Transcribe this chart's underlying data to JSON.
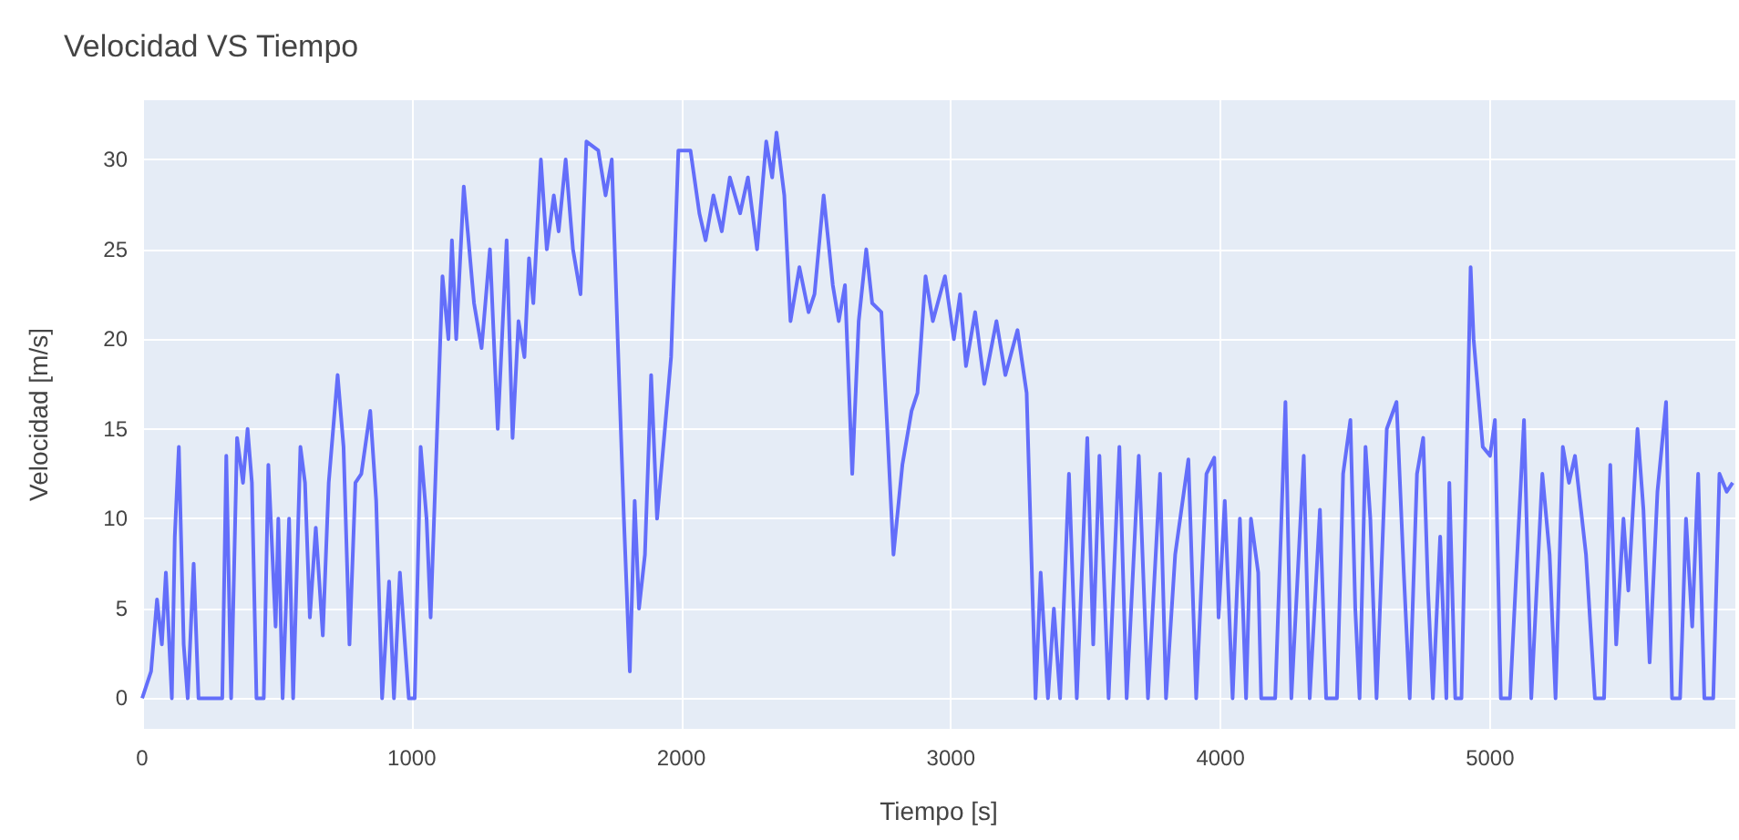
{
  "chart_data": {
    "type": "line",
    "title": "Velocidad VS Tiempo",
    "xlabel": "Tiempo [s]",
    "ylabel": "Velocidad [m/s]",
    "xlim": [
      0,
      5910
    ],
    "xticks": [
      0,
      1000,
      2000,
      3000,
      4000,
      5000
    ],
    "ylim": [
      -1.7,
      33.3
    ],
    "yticks": [
      0,
      5,
      10,
      15,
      20,
      25,
      30
    ],
    "grid": true,
    "x": [
      0,
      33,
      55,
      73,
      88,
      110,
      121,
      136,
      154,
      169,
      191,
      209,
      297,
      312,
      330,
      352,
      374,
      391,
      407,
      424,
      451,
      468,
      495,
      505,
      521,
      545,
      560,
      587,
      604,
      622,
      644,
      670,
      692,
      725,
      747,
      769,
      791,
      813,
      846,
      868,
      890,
      916,
      934,
      956,
      989,
      1011,
      1033,
      1055,
      1070,
      1114,
      1136,
      1149,
      1165,
      1193,
      1231,
      1259,
      1290,
      1319,
      1352,
      1374,
      1396,
      1418,
      1435,
      1451,
      1479,
      1501,
      1527,
      1545,
      1571,
      1598,
      1626,
      1648,
      1692,
      1719,
      1742,
      1764,
      1787,
      1809,
      1827,
      1843,
      1865,
      1888,
      1910,
      1939,
      1962,
      1989,
      2034,
      2067,
      2090,
      2119,
      2150,
      2180,
      2218,
      2247,
      2281,
      2315,
      2337,
      2353,
      2382,
      2405,
      2438,
      2472,
      2494,
      2528,
      2562,
      2584,
      2607,
      2634,
      2658,
      2686,
      2708,
      2742,
      2764,
      2787,
      2820,
      2854,
      2876,
      2906,
      2933,
      2978,
      3011,
      3034,
      3056,
      3090,
      3124,
      3169,
      3202,
      3247,
      3281,
      3314,
      3333,
      3360,
      3382,
      3405,
      3438,
      3467,
      3506,
      3528,
      3551,
      3567,
      3585,
      3625,
      3652,
      3697,
      3731,
      3776,
      3798,
      3832,
      3881,
      3910,
      3948,
      3977,
      3993,
      4016,
      4045,
      4072,
      4095,
      4113,
      4140,
      4151,
      4203,
      4241,
      4263,
      4309,
      4331,
      4369,
      4392,
      4432,
      4455,
      4482,
      4500,
      4516,
      4538,
      4556,
      4579,
      4617,
      4653,
      4680,
      4702,
      4729,
      4752,
      4770,
      4788,
      4815,
      4838,
      4849,
      4871,
      4894,
      4928,
      4939,
      4973,
      5000,
      5018,
      5040,
      5074,
      5126,
      5153,
      5194,
      5221,
      5243,
      5270,
      5293,
      5315,
      5356,
      5389,
      5423,
      5446,
      5468,
      5495,
      5513,
      5547,
      5569,
      5592,
      5621,
      5653,
      5675,
      5705,
      5727,
      5750,
      5772,
      5795,
      5828,
      5851,
      5878,
      5900
    ],
    "series": [
      {
        "color": "#636efa",
        "values": [
          0,
          1.5,
          5.5,
          3,
          7,
          0,
          9,
          14,
          3,
          0,
          7.5,
          0,
          0,
          13.5,
          0,
          14.5,
          12,
          15,
          12,
          0,
          0,
          13,
          4,
          10,
          0,
          10,
          0,
          14,
          12,
          4.5,
          9.5,
          3.5,
          12,
          18,
          14,
          3,
          12,
          12.5,
          16,
          11,
          0,
          6.5,
          0,
          7,
          0,
          0,
          14,
          10,
          4.5,
          23.5,
          20,
          25.5,
          20,
          28.5,
          22,
          19.5,
          25,
          15,
          25.5,
          14.5,
          21,
          19,
          24.5,
          22,
          30,
          25,
          28,
          26,
          30,
          25,
          22.5,
          31,
          30.5,
          28,
          30,
          20,
          10,
          1.5,
          11,
          5,
          8,
          18,
          10,
          15,
          19,
          30.5,
          30.5,
          27,
          25.5,
          28,
          26,
          29,
          27,
          29,
          25,
          31,
          29,
          31.5,
          28,
          21,
          24,
          21.5,
          22.5,
          28,
          23,
          21,
          23,
          12.5,
          21,
          25,
          22,
          21.5,
          15,
          8,
          13,
          16,
          17,
          23.5,
          21,
          23.5,
          20,
          22.5,
          18.5,
          21.5,
          17.5,
          21,
          18,
          20.5,
          17,
          0,
          7,
          0,
          5,
          0,
          12.5,
          0,
          14.5,
          3,
          13.5,
          7,
          0,
          14,
          0,
          13.5,
          0,
          12.5,
          0,
          8,
          13.3,
          0,
          12.5,
          13.4,
          4.5,
          11,
          0,
          10,
          0,
          10,
          7,
          0,
          0,
          16.5,
          0,
          13.5,
          0,
          10.5,
          0,
          0,
          12.5,
          15.5,
          5,
          0,
          14,
          10,
          0,
          15,
          16.5,
          7,
          0,
          12.5,
          14.5,
          6,
          0,
          9,
          0,
          12,
          0,
          0,
          24,
          20,
          14,
          13.5,
          15.5,
          0,
          0,
          15.5,
          0,
          12.5,
          8,
          0,
          14,
          12,
          13.5,
          8,
          0,
          0,
          13,
          3,
          10,
          6,
          15,
          10.5,
          2,
          11.5,
          16.5,
          0,
          0,
          10,
          4,
          12.5,
          0,
          0,
          12.5,
          11.5,
          12
        ]
      }
    ]
  }
}
